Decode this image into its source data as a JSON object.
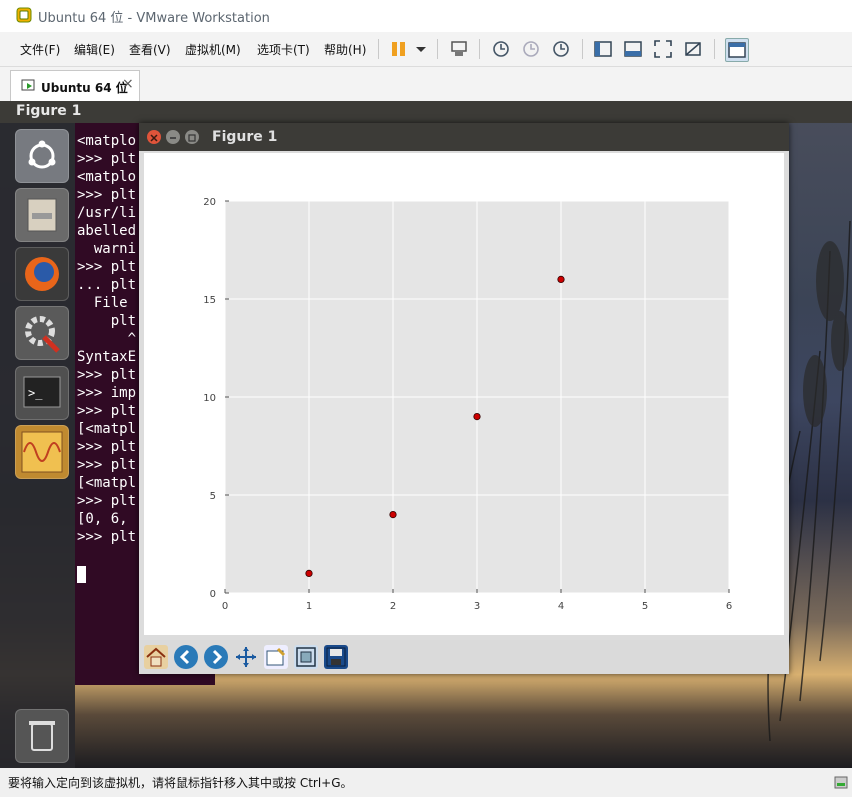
{
  "window": {
    "title": "Ubuntu 64 位 - VMware Workstation"
  },
  "menu": {
    "items": [
      "文件(F)",
      "编辑(E)",
      "查看(V)",
      "虚拟机(M)",
      "选项卡(T)",
      "帮助(H)"
    ]
  },
  "toolbar": {
    "icons": [
      "pause-icon",
      "dropdown-icon",
      "send-ctrl-alt-del-icon",
      "snapshot-icon",
      "revert-snapshot-icon",
      "manage-snapshots-icon",
      "show-library-icon",
      "thumbnail-bar-icon",
      "full-screen-icon",
      "unity-icon",
      "console-view-icon"
    ]
  },
  "tab": {
    "label": "Ubuntu 64 位",
    "close": "×"
  },
  "guest": {
    "panel_title": "Figure 1",
    "launcher": [
      "ubuntu-logo-icon",
      "files-icon",
      "firefox-icon",
      "settings-icon",
      "terminal-icon",
      "figure-app-icon",
      "trash-icon"
    ],
    "terminal_lines": [
      "<matplo",
      ">>> plt",
      "<matplo",
      ">>> plt",
      "/usr/li",
      "abelled",
      "  warni",
      ">>> plt",
      "... plt",
      "  File",
      "    plt",
      "      ^",
      "SyntaxE",
      ">>> plt",
      ">>> imp",
      ">>> plt",
      "[<matpl",
      ">>> plt",
      ">>> plt",
      "[<matpl",
      ">>> plt",
      "[0, 6,",
      ">>> plt"
    ]
  },
  "figure": {
    "title": "Figure 1",
    "toolbar": [
      "home-icon",
      "back-icon",
      "forward-icon",
      "pan-icon",
      "configure-subplots-icon",
      "zoom-rect-icon",
      "save-icon"
    ]
  },
  "chart_data": {
    "type": "scatter",
    "x": [
      1,
      2,
      3,
      4
    ],
    "y": [
      1,
      4,
      9,
      16
    ],
    "xlim": [
      0,
      6
    ],
    "ylim": [
      0,
      20
    ],
    "xticks": [
      0,
      1,
      2,
      3,
      4,
      5,
      6
    ],
    "yticks": [
      0,
      5,
      10,
      15,
      20
    ],
    "title": "",
    "xlabel": "",
    "ylabel": "",
    "grid": true,
    "marker_color": "#cc0000",
    "background": "#e5e5e5"
  },
  "status": {
    "text": "要将输入定向到该虚拟机，请将鼠标指针移入其中或按 Ctrl+G。"
  }
}
